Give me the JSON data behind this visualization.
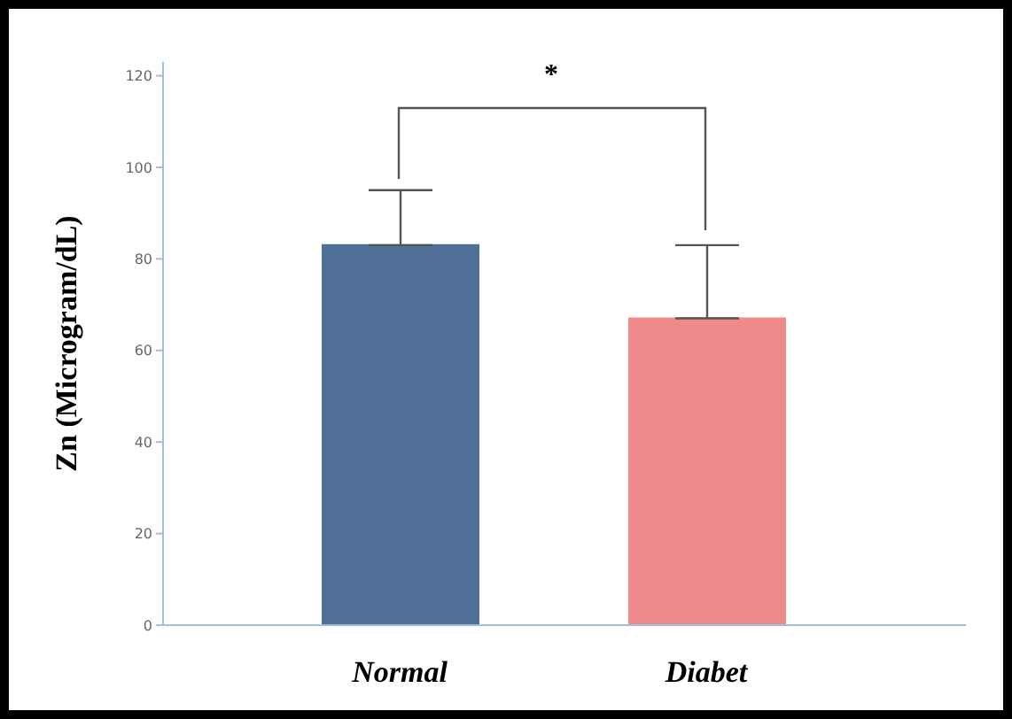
{
  "chart_data": {
    "type": "bar",
    "ylabel": "Zn (Microgram/dL)",
    "categories": [
      "Normal",
      "Diabet"
    ],
    "values": [
      83,
      67
    ],
    "colors": [
      "#4f6f96",
      "#ee8a8a"
    ],
    "errors": [
      12,
      16
    ],
    "ylim": [
      0,
      123
    ],
    "yticks": [
      0,
      20,
      40,
      60,
      80,
      100,
      120
    ],
    "annotations": [
      "*"
    ]
  }
}
